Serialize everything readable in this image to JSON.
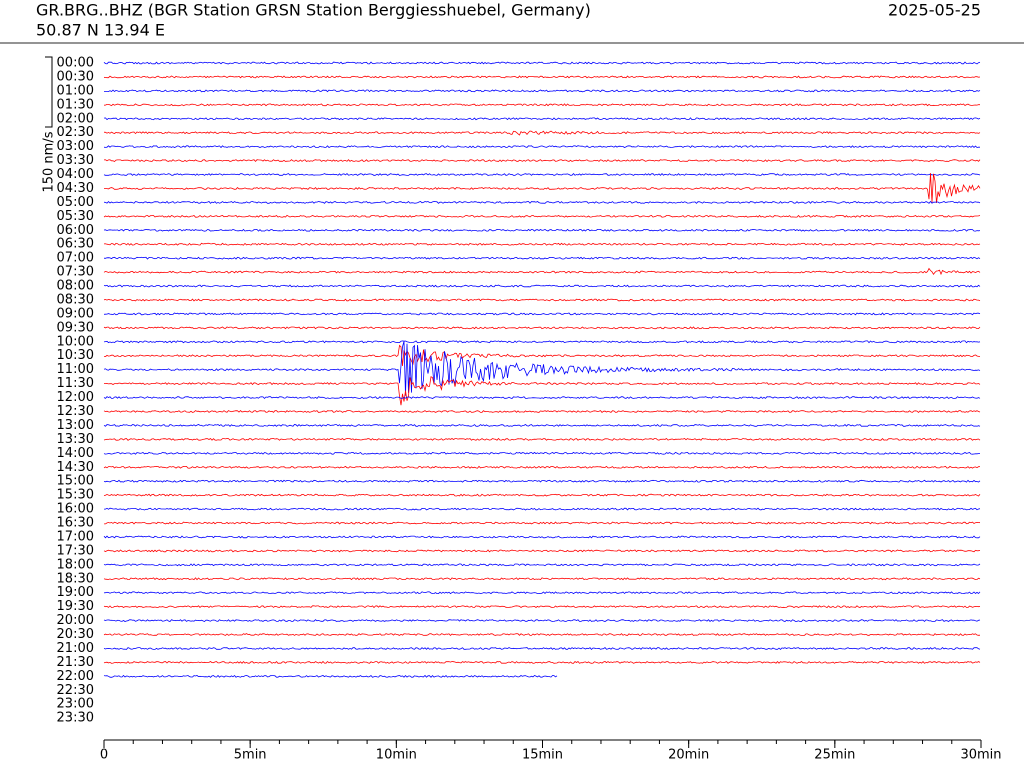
{
  "chart_data": {
    "type": "helicorder",
    "title": "GR.BRG..BHZ (BGR Station GRSN Station Berggiesshuebel, Germany)",
    "date": "2025-05-25",
    "coords": "50.87 N 13.94 E",
    "scale_label": "150 nm/s",
    "categories": [
      "00:00",
      "00:30",
      "01:00",
      "01:30",
      "02:00",
      "02:30",
      "03:00",
      "03:30",
      "04:00",
      "04:30",
      "05:00",
      "05:30",
      "06:00",
      "06:30",
      "07:00",
      "07:30",
      "08:00",
      "08:30",
      "09:00",
      "09:30",
      "10:00",
      "10:30",
      "11:00",
      "11:30",
      "12:00",
      "12:30",
      "13:00",
      "13:30",
      "14:00",
      "14:30",
      "15:00",
      "15:30",
      "16:00",
      "16:30",
      "17:00",
      "17:30",
      "18:00",
      "18:30",
      "19:00",
      "19:30",
      "20:00",
      "20:30",
      "21:00",
      "21:30",
      "22:00",
      "22:30",
      "23:00",
      "23:30"
    ],
    "colors": [
      "#0000ff",
      "#ff0000"
    ],
    "xlim": [
      0,
      30
    ],
    "xticks": [
      0,
      {
        "value": 5,
        "label": "5min"
      },
      {
        "value": 10,
        "label": "10min"
      },
      {
        "value": 15,
        "label": "15min"
      },
      {
        "value": 20,
        "label": "20min"
      },
      {
        "value": 25,
        "label": "25min"
      },
      {
        "value": 30,
        "label": "30min"
      }
    ]
  }
}
